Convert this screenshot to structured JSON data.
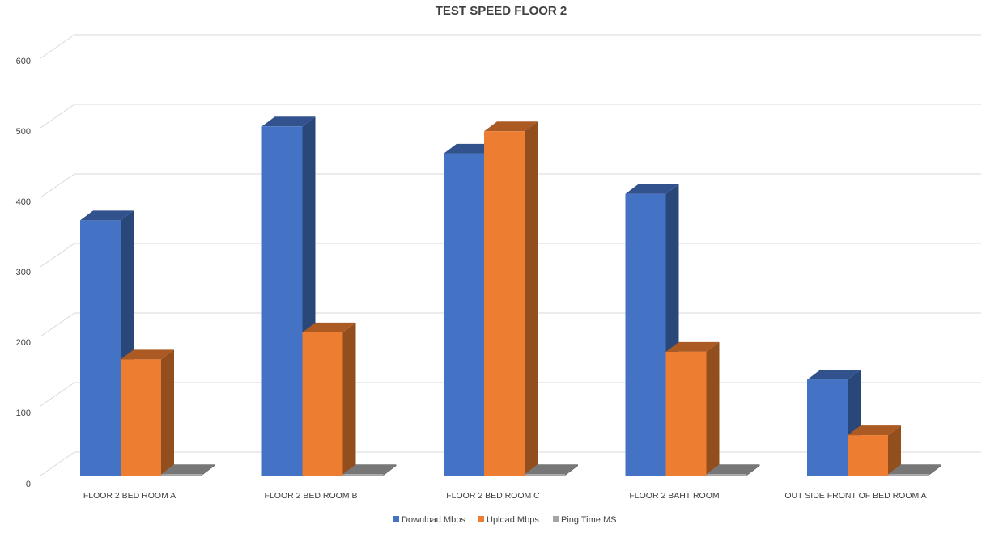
{
  "chart_data": {
    "type": "bar",
    "title": "TEST SPEED FLOOR 2",
    "categories": [
      "FLOOR 2 BED ROOM A",
      "FLOOR 2 BED ROOM B",
      "FLOOR 2 BED ROOM C",
      "FLOOR 2 BAHT ROOM",
      "OUT SIDE FRONT OF BED ROOM A"
    ],
    "series": [
      {
        "name": "Download Mbps",
        "values": [
          367,
          502,
          463,
          405,
          138
        ],
        "color": "#4472c4"
      },
      {
        "name": "Upload Mbps",
        "values": [
          167,
          206,
          495,
          178,
          58
        ],
        "color": "#ed7d31"
      },
      {
        "name": "Ping Time MS",
        "values": [
          2,
          2,
          2,
          2,
          2
        ],
        "color": "#a5a5a5"
      }
    ],
    "yticks": [
      "0",
      "100",
      "200",
      "300",
      "400",
      "500",
      "600"
    ],
    "ylim": [
      0,
      600
    ],
    "grid": true,
    "legend_position": "bottom",
    "style": "3d-clustered-column"
  }
}
